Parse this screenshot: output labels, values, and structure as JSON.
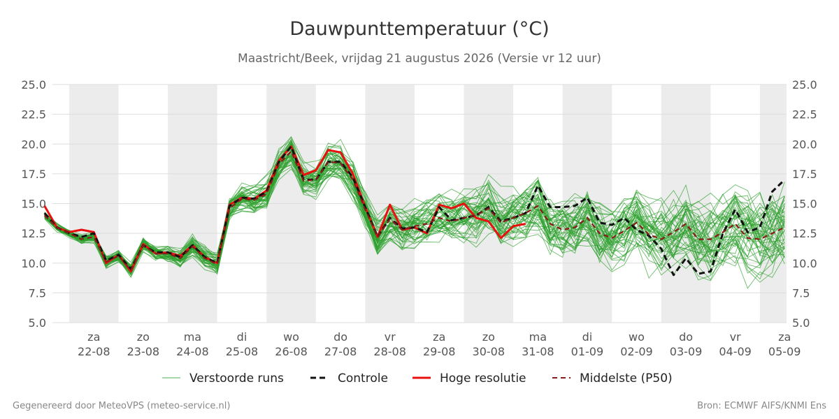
{
  "colors": {
    "background": "#ffffff",
    "weekend_band": "#ececec",
    "grid": "#dddddd",
    "ensemble": "#2ca02c",
    "control": "#111111",
    "high_res": "#e8110f",
    "median": "#8b1a1a"
  },
  "chart_data": {
    "type": "line",
    "title": "Dauwpunttemperatuur (°C)",
    "subtitle": "Maastricht/Beek, vrijdag 21 augustus 2026 (Versie vr 12 uur)",
    "ylim": [
      5.0,
      25.0
    ],
    "yticks": [
      "25.0",
      "22.5",
      "20.0",
      "17.5",
      "15.0",
      "12.5",
      "10.0",
      "7.5",
      "5.0"
    ],
    "ytick_values": [
      25.0,
      22.5,
      20.0,
      17.5,
      15.0,
      12.5,
      10.0,
      7.5,
      5.0
    ],
    "xlim_days": [
      21.66,
      36.54
    ],
    "x_unit": "days since 21-08-2026 00:00",
    "days": [
      {
        "weekday": "za",
        "date": "22-08",
        "x": 22.5
      },
      {
        "weekday": "zo",
        "date": "23-08",
        "x": 23.5
      },
      {
        "weekday": "ma",
        "date": "24-08",
        "x": 24.5
      },
      {
        "weekday": "di",
        "date": "25-08",
        "x": 25.5
      },
      {
        "weekday": "wo",
        "date": "26-08",
        "x": 26.5
      },
      {
        "weekday": "do",
        "date": "27-08",
        "x": 27.5
      },
      {
        "weekday": "vr",
        "date": "28-08",
        "x": 28.5
      },
      {
        "weekday": "za",
        "date": "29-08",
        "x": 29.5
      },
      {
        "weekday": "zo",
        "date": "30-08",
        "x": 30.5
      },
      {
        "weekday": "ma",
        "date": "31-08",
        "x": 31.5
      },
      {
        "weekday": "di",
        "date": "01-09",
        "x": 32.5
      },
      {
        "weekday": "wo",
        "date": "02-09",
        "x": 33.5
      },
      {
        "weekday": "do",
        "date": "03-09",
        "x": 34.5
      },
      {
        "weekday": "vr",
        "date": "04-09",
        "x": 35.5
      },
      {
        "weekday": "za",
        "date": "05-09",
        "x": 36.5
      }
    ],
    "shaded_bands": [
      [
        22.0,
        23.0
      ],
      [
        24.0,
        25.0
      ],
      [
        26.0,
        27.0
      ],
      [
        28.0,
        29.0
      ],
      [
        30.0,
        31.0
      ],
      [
        32.0,
        33.0
      ],
      [
        34.0,
        35.0
      ],
      [
        36.0,
        36.54
      ]
    ],
    "series": [
      {
        "name": "Controle",
        "style": "dashed",
        "x": [
          21.5,
          21.75,
          22.0,
          22.25,
          22.5,
          22.75,
          23.0,
          23.25,
          23.5,
          23.75,
          24.0,
          24.25,
          24.5,
          24.75,
          25.0,
          25.25,
          25.5,
          25.75,
          26.0,
          26.25,
          26.5,
          26.75,
          27.0,
          27.25,
          27.5,
          27.75,
          28.0,
          28.25,
          28.5,
          28.75,
          29.0,
          29.25,
          29.5,
          29.75,
          30.0,
          30.25,
          30.5,
          30.75,
          31.0,
          31.25,
          31.5,
          31.75,
          32.0,
          32.25,
          32.5,
          32.75,
          33.0,
          33.25,
          33.5,
          33.75,
          34.0,
          34.25,
          34.5,
          34.75,
          35.0,
          35.25,
          35.5,
          35.75,
          36.0,
          36.25,
          36.5
        ],
        "values": [
          14.2,
          13.0,
          12.5,
          12.2,
          12.5,
          10.2,
          10.7,
          9.5,
          11.5,
          10.9,
          10.9,
          10.5,
          11.5,
          10.5,
          10.0,
          14.8,
          15.5,
          15.4,
          16.0,
          18.5,
          19.8,
          17.0,
          17.0,
          18.5,
          18.5,
          17.2,
          14.7,
          12.2,
          13.8,
          12.9,
          13.0,
          12.6,
          14.7,
          13.6,
          13.8,
          14.0,
          14.7,
          13.5,
          13.8,
          14.2,
          16.5,
          14.7,
          14.7,
          14.8,
          15.5,
          13.4,
          13.2,
          13.8,
          12.8,
          12.3,
          11.2,
          9.0,
          10.4,
          9.1,
          9.3,
          12.5,
          14.5,
          12.6,
          13.0,
          16.0,
          17.0
        ]
      },
      {
        "name": "Hoge resolutie",
        "style": "solid",
        "x": [
          21.5,
          21.75,
          22.0,
          22.25,
          22.5,
          22.75,
          23.0,
          23.25,
          23.5,
          23.75,
          24.0,
          24.25,
          24.5,
          24.75,
          25.0,
          25.25,
          25.5,
          25.75,
          26.0,
          26.25,
          26.5,
          26.75,
          27.0,
          27.25,
          27.5,
          27.75,
          28.0,
          28.25,
          28.5,
          28.75,
          29.0,
          29.25,
          29.5,
          29.75,
          30.0,
          30.25,
          30.5,
          30.75,
          31.0,
          31.25
        ],
        "values": [
          14.8,
          13.0,
          12.6,
          12.8,
          12.6,
          10.0,
          10.7,
          9.3,
          11.6,
          10.8,
          10.9,
          10.6,
          11.5,
          10.5,
          10.0,
          14.9,
          15.5,
          15.4,
          16.1,
          18.6,
          19.8,
          17.4,
          17.8,
          19.5,
          19.3,
          17.5,
          14.7,
          12.2,
          14.9,
          12.8,
          13.0,
          12.5,
          14.9,
          14.6,
          15.0,
          13.8,
          13.5,
          12.1,
          13.1,
          13.3
        ]
      },
      {
        "name": "Middelste (P50)",
        "style": "dashed",
        "x": [
          21.5,
          21.75,
          22.0,
          22.25,
          22.5,
          22.75,
          23.0,
          23.25,
          23.5,
          23.75,
          24.0,
          24.25,
          24.5,
          24.75,
          25.0,
          25.25,
          25.5,
          25.75,
          26.0,
          26.25,
          26.5,
          26.75,
          27.0,
          27.25,
          27.5,
          27.75,
          28.0,
          28.25,
          28.5,
          28.75,
          29.0,
          29.25,
          29.5,
          29.75,
          30.0,
          30.25,
          30.5,
          30.75,
          31.0,
          31.25,
          31.5,
          31.75,
          32.0,
          32.25,
          32.5,
          32.75,
          33.0,
          33.25,
          33.5,
          33.75,
          34.0,
          34.25,
          34.5,
          34.75,
          35.0,
          35.25,
          35.5,
          35.75,
          36.0,
          36.25,
          36.5
        ],
        "values": [
          14.0,
          13.0,
          12.5,
          12.0,
          12.2,
          10.1,
          10.6,
          9.4,
          11.5,
          10.8,
          10.8,
          10.4,
          11.4,
          10.4,
          9.9,
          14.6,
          15.4,
          15.3,
          15.8,
          18.3,
          19.4,
          16.9,
          17.0,
          18.5,
          18.4,
          17.0,
          14.5,
          12.2,
          13.7,
          12.8,
          13.1,
          13.3,
          13.8,
          13.5,
          13.8,
          14.0,
          14.6,
          13.4,
          13.8,
          14.2,
          14.8,
          13.3,
          12.8,
          13.0,
          13.8,
          12.5,
          12.1,
          12.7,
          13.4,
          12.4,
          12.0,
          12.6,
          13.3,
          12.0,
          12.0,
          12.6,
          13.3,
          12.1,
          12.0,
          12.5,
          13.0
        ]
      }
    ],
    "ensemble_name": "Verstoorde runs",
    "ensemble_members": 50
  },
  "legend": {
    "items": [
      {
        "label": "Verstoorde runs"
      },
      {
        "label": "Controle"
      },
      {
        "label": "Hoge resolutie"
      },
      {
        "label": "Middelste (P50)"
      }
    ]
  },
  "footer": {
    "left": "Gegenereerd door MeteoVPS (meteo-service.nl)",
    "right": "Bron: ECMWF AIFS/KNMI Ens"
  }
}
